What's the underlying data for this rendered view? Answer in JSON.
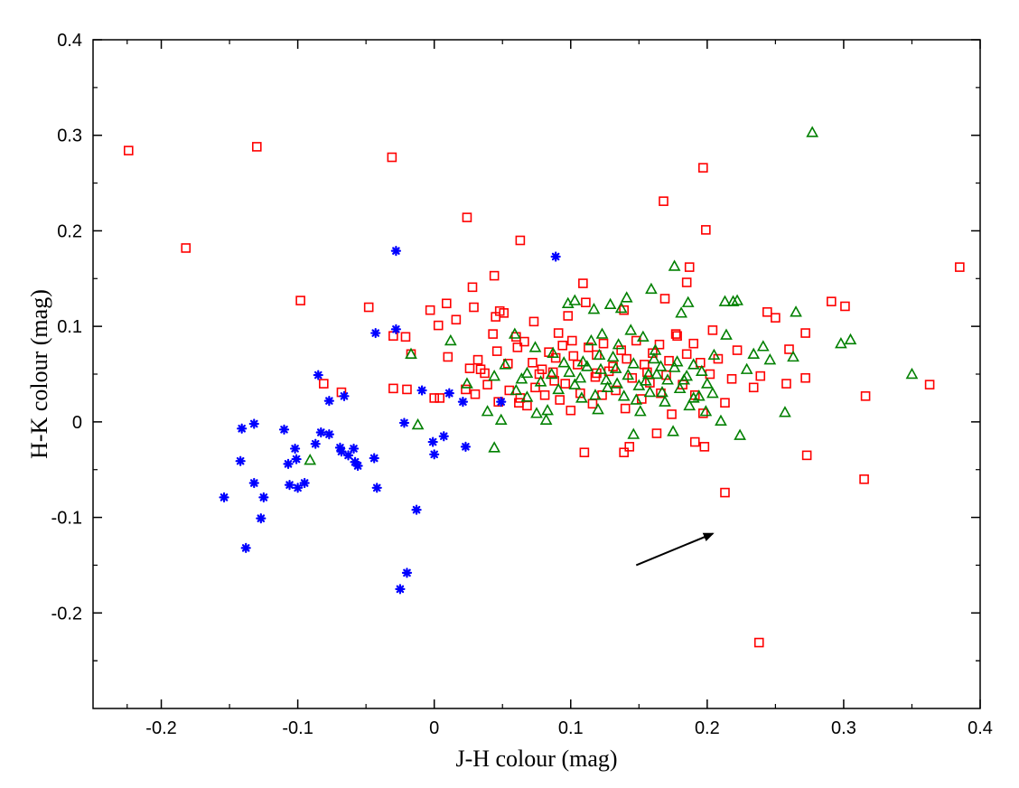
{
  "chart_data": {
    "type": "scatter",
    "xlabel": "J-H colour (mag)",
    "ylabel": "H-K colour (mag)",
    "xlim": [
      -0.25,
      0.4
    ],
    "ylim": [
      -0.3,
      0.4
    ],
    "x_ticks": [
      -0.2,
      -0.1,
      0,
      0.1,
      0.2,
      0.3,
      0.4
    ],
    "x_tick_labels": [
      "-0.2",
      "-0.1",
      "0",
      "0.1",
      "0.2",
      "0.3",
      "0.4"
    ],
    "y_ticks": [
      -0.2,
      -0.1,
      0,
      0.1,
      0.2,
      0.3,
      0.4
    ],
    "y_tick_labels": [
      "-0.2",
      "-0.1",
      "0",
      "0.1",
      "0.2",
      "0.3",
      "0.4"
    ],
    "grid": false,
    "legend": "none",
    "series": [
      {
        "marker": "square",
        "color": "#ff0000",
        "points": [
          [
            -0.224,
            0.284
          ],
          [
            -0.13,
            0.288
          ],
          [
            -0.182,
            0.182
          ],
          [
            -0.031,
            0.277
          ],
          [
            0.024,
            0.214
          ],
          [
            0.197,
            0.266
          ],
          [
            0.168,
            0.231
          ],
          [
            0.199,
            0.201
          ],
          [
            0.063,
            0.19
          ],
          [
            0.385,
            0.162
          ],
          [
            0.187,
            0.162
          ],
          [
            0.044,
            0.153
          ],
          [
            -0.098,
            0.127
          ],
          [
            -0.048,
            0.12
          ],
          [
            0.028,
            0.141
          ],
          [
            0.109,
            0.145
          ],
          [
            0.185,
            0.146
          ],
          [
            0.009,
            0.124
          ],
          [
            0.029,
            0.12
          ],
          [
            0.111,
            0.125
          ],
          [
            0.169,
            0.129
          ],
          [
            0.291,
            0.126
          ],
          [
            0.301,
            0.121
          ],
          [
            -0.003,
            0.117
          ],
          [
            0.003,
            0.101
          ],
          [
            0.016,
            0.107
          ],
          [
            0.048,
            0.116
          ],
          [
            0.051,
            0.114
          ],
          [
            0.098,
            0.111
          ],
          [
            0.139,
            0.117
          ],
          [
            0.244,
            0.115
          ],
          [
            0.25,
            0.109
          ],
          [
            0.045,
            0.11
          ],
          [
            0.073,
            0.105
          ],
          [
            0.043,
            0.092
          ],
          [
            0.06,
            0.089
          ],
          [
            0.091,
            0.093
          ],
          [
            0.177,
            0.092
          ],
          [
            0.204,
            0.096
          ],
          [
            0.272,
            0.093
          ],
          [
            -0.03,
            0.09
          ],
          [
            -0.021,
            0.089
          ],
          [
            -0.081,
            0.04
          ],
          [
            -0.068,
            0.031
          ],
          [
            -0.03,
            0.035
          ],
          [
            -0.02,
            0.034
          ],
          [
            -0.017,
            0.071
          ],
          [
            0.01,
            0.068
          ],
          [
            0.004,
            0.025
          ],
          [
            0.026,
            0.056
          ],
          [
            0.032,
            0.065
          ],
          [
            0.037,
            0.051
          ],
          [
            0.046,
            0.074
          ],
          [
            0.054,
            0.061
          ],
          [
            0.061,
            0.078
          ],
          [
            0.066,
            0.084
          ],
          [
            0.072,
            0.062
          ],
          [
            0.077,
            0.05
          ],
          [
            0.084,
            0.073
          ],
          [
            0.089,
            0.067
          ],
          [
            0.094,
            0.08
          ],
          [
            0.101,
            0.085
          ],
          [
            0.105,
            0.06
          ],
          [
            0.113,
            0.078
          ],
          [
            0.119,
            0.07
          ],
          [
            0.124,
            0.082
          ],
          [
            0.131,
            0.058
          ],
          [
            0.137,
            0.075
          ],
          [
            0.141,
            0.066
          ],
          [
            0.148,
            0.085
          ],
          [
            0.154,
            0.06
          ],
          [
            0.16,
            0.072
          ],
          [
            0.165,
            0.081
          ],
          [
            0.172,
            0.064
          ],
          [
            0.178,
            0.09
          ],
          [
            0.185,
            0.071
          ],
          [
            0.19,
            0.082
          ],
          [
            0.195,
            0.062
          ],
          [
            0.202,
            0.05
          ],
          [
            0.208,
            0.066
          ],
          [
            0.213,
            0.02
          ],
          [
            0.218,
            0.045
          ],
          [
            0.222,
            0.075
          ],
          [
            0.234,
            0.036
          ],
          [
            0.239,
            0.048
          ],
          [
            0.258,
            0.04
          ],
          [
            0.26,
            0.076
          ],
          [
            0.272,
            0.046
          ],
          [
            0.023,
            0.034
          ],
          [
            0.03,
            0.029
          ],
          [
            0.039,
            0.039
          ],
          [
            0.047,
            0.021
          ],
          [
            0.055,
            0.033
          ],
          [
            0.063,
            0.025
          ],
          [
            0.068,
            0.017
          ],
          [
            0.074,
            0.036
          ],
          [
            0.081,
            0.028
          ],
          [
            0.088,
            0.043
          ],
          [
            0.092,
            0.023
          ],
          [
            0.1,
            0.012
          ],
          [
            0.107,
            0.03
          ],
          [
            0.116,
            0.019
          ],
          [
            0.123,
            0.028
          ],
          [
            0.133,
            0.033
          ],
          [
            0.14,
            0.014
          ],
          [
            0.145,
            0.046
          ],
          [
            0.152,
            0.024
          ],
          [
            0.158,
            0.041
          ],
          [
            0.166,
            0.03
          ],
          [
            0.174,
            0.008
          ],
          [
            0.182,
            0.039
          ],
          [
            0.191,
            0.028
          ],
          [
            0.197,
            0.009
          ],
          [
            0.11,
            -0.032
          ],
          [
            0.143,
            -0.026
          ],
          [
            0.163,
            -0.012
          ],
          [
            0.191,
            -0.021
          ],
          [
            0.198,
            -0.026
          ],
          [
            0.139,
            -0.032
          ],
          [
            0.273,
            -0.035
          ],
          [
            0.316,
            0.027
          ],
          [
            0.363,
            0.039
          ],
          [
            0.315,
            -0.06
          ],
          [
            0.213,
            -0.074
          ],
          [
            0.238,
            -0.231
          ],
          [
            0.0,
            0.025
          ],
          [
            0.062,
            0.02
          ],
          [
            0.034,
            0.055
          ],
          [
            0.087,
            0.052
          ],
          [
            0.096,
            0.04
          ],
          [
            0.118,
            0.047
          ],
          [
            0.128,
            0.053
          ],
          [
            0.156,
            0.052
          ],
          [
            0.17,
            0.049
          ],
          [
            0.119,
            0.051
          ],
          [
            0.079,
            0.055
          ],
          [
            0.102,
            0.069
          ]
        ]
      },
      {
        "marker": "triangle",
        "color": "#008000",
        "points": [
          [
            0.277,
            0.303
          ],
          [
            0.176,
            0.163
          ],
          [
            0.298,
            0.082
          ],
          [
            0.305,
            0.086
          ],
          [
            0.35,
            0.05
          ],
          [
            0.222,
            0.127
          ],
          [
            0.213,
            0.126
          ],
          [
            0.219,
            0.126
          ],
          [
            0.186,
            0.125
          ],
          [
            0.265,
            0.115
          ],
          [
            0.098,
            0.124
          ],
          [
            0.103,
            0.127
          ],
          [
            0.159,
            0.139
          ],
          [
            0.141,
            0.13
          ],
          [
            0.129,
            0.123
          ],
          [
            0.137,
            0.119
          ],
          [
            0.181,
            0.114
          ],
          [
            0.117,
            0.118
          ],
          [
            -0.017,
            0.071
          ],
          [
            -0.012,
            -0.003
          ],
          [
            -0.091,
            -0.04
          ],
          [
            0.012,
            0.085
          ],
          [
            0.024,
            0.04
          ],
          [
            0.044,
            -0.027
          ],
          [
            0.052,
            0.06
          ],
          [
            0.06,
            0.033
          ],
          [
            0.064,
            0.045
          ],
          [
            0.074,
            0.078
          ],
          [
            0.083,
            0.012
          ],
          [
            0.086,
            0.05
          ],
          [
            0.095,
            0.062
          ],
          [
            0.103,
            0.039
          ],
          [
            0.108,
            0.025
          ],
          [
            0.112,
            0.058
          ],
          [
            0.121,
            0.07
          ],
          [
            0.126,
            0.044
          ],
          [
            0.133,
            0.056
          ],
          [
            0.139,
            0.027
          ],
          [
            0.146,
            0.061
          ],
          [
            0.15,
            0.038
          ],
          [
            0.157,
            0.05
          ],
          [
            0.161,
            0.066
          ],
          [
            0.167,
            0.031
          ],
          [
            0.171,
            0.044
          ],
          [
            0.176,
            0.057
          ],
          [
            0.18,
            0.035
          ],
          [
            0.185,
            0.048
          ],
          [
            0.19,
            0.06
          ],
          [
            0.194,
            0.027
          ],
          [
            0.2,
            0.04
          ],
          [
            0.205,
            0.07
          ],
          [
            0.21,
            0.001
          ],
          [
            0.214,
            0.091
          ],
          [
            0.224,
            -0.014
          ],
          [
            0.229,
            0.055
          ],
          [
            0.234,
            0.071
          ],
          [
            0.241,
            0.079
          ],
          [
            0.246,
            0.065
          ],
          [
            0.257,
            0.01
          ],
          [
            0.263,
            0.068
          ],
          [
            0.075,
            0.009
          ],
          [
            0.082,
            0.002
          ],
          [
            0.12,
            0.013
          ],
          [
            0.146,
            -0.013
          ],
          [
            0.151,
            0.011
          ],
          [
            0.175,
            -0.01
          ],
          [
            0.19,
            0.025
          ],
          [
            0.199,
            0.011
          ],
          [
            0.059,
            0.092
          ],
          [
            0.068,
            0.026
          ],
          [
            0.087,
            0.072
          ],
          [
            0.115,
            0.085
          ],
          [
            0.123,
            0.092
          ],
          [
            0.135,
            0.081
          ],
          [
            0.144,
            0.096
          ],
          [
            0.153,
            0.089
          ],
          [
            0.162,
            0.075
          ],
          [
            0.068,
            0.051
          ],
          [
            0.078,
            0.042
          ],
          [
            0.091,
            0.034
          ],
          [
            0.099,
            0.052
          ],
          [
            0.109,
            0.063
          ],
          [
            0.118,
            0.028
          ],
          [
            0.127,
            0.036
          ],
          [
            0.131,
            0.068
          ],
          [
            0.142,
            0.049
          ],
          [
            0.148,
            0.023
          ],
          [
            0.155,
            0.043
          ],
          [
            0.163,
            0.05
          ],
          [
            0.169,
            0.021
          ],
          [
            0.178,
            0.063
          ],
          [
            0.187,
            0.017
          ],
          [
            0.196,
            0.053
          ],
          [
            0.204,
            0.03
          ],
          [
            0.044,
            0.048
          ],
          [
            0.039,
            0.011
          ],
          [
            0.049,
            0.002
          ],
          [
            0.107,
            0.046
          ],
          [
            0.122,
            0.055
          ],
          [
            0.134,
            0.04
          ],
          [
            0.158,
            0.031
          ],
          [
            0.166,
            0.058
          ],
          [
            0.183,
            0.044
          ]
        ]
      },
      {
        "marker": "asterisk",
        "color": "#0000ff",
        "points": [
          [
            -0.028,
            0.179
          ],
          [
            0.089,
            0.173
          ],
          [
            -0.028,
            0.097
          ],
          [
            -0.043,
            0.093
          ],
          [
            -0.085,
            0.049
          ],
          [
            -0.077,
            0.022
          ],
          [
            -0.066,
            0.027
          ],
          [
            -0.141,
            -0.007
          ],
          [
            -0.132,
            -0.002
          ],
          [
            -0.11,
            -0.008
          ],
          [
            -0.142,
            -0.041
          ],
          [
            -0.132,
            -0.064
          ],
          [
            -0.107,
            -0.044
          ],
          [
            -0.106,
            -0.066
          ],
          [
            -0.101,
            -0.039
          ],
          [
            -0.102,
            -0.028
          ],
          [
            -0.1,
            -0.069
          ],
          [
            -0.095,
            -0.064
          ],
          [
            -0.087,
            -0.023
          ],
          [
            -0.083,
            -0.011
          ],
          [
            -0.077,
            -0.013
          ],
          [
            -0.069,
            -0.027
          ],
          [
            -0.068,
            -0.031
          ],
          [
            -0.063,
            -0.035
          ],
          [
            -0.059,
            -0.028
          ],
          [
            -0.058,
            -0.042
          ],
          [
            -0.056,
            -0.046
          ],
          [
            -0.044,
            -0.038
          ],
          [
            -0.042,
            -0.069
          ],
          [
            -0.154,
            -0.079
          ],
          [
            -0.125,
            -0.079
          ],
          [
            -0.127,
            -0.101
          ],
          [
            -0.138,
            -0.132
          ],
          [
            -0.022,
            -0.001
          ],
          [
            -0.009,
            0.033
          ],
          [
            -0.001,
            -0.021
          ],
          [
            0.0,
            -0.034
          ],
          [
            0.007,
            -0.015
          ],
          [
            0.011,
            0.03
          ],
          [
            0.021,
            0.021
          ],
          [
            0.023,
            -0.026
          ],
          [
            -0.013,
            -0.092
          ],
          [
            -0.02,
            -0.158
          ],
          [
            -0.025,
            -0.175
          ],
          [
            0.049,
            0.021
          ]
        ]
      }
    ],
    "annotations": [
      {
        "type": "arrow",
        "color": "#000000",
        "from": [
          0.148,
          -0.15
        ],
        "to": [
          0.204,
          -0.117
        ]
      }
    ]
  }
}
